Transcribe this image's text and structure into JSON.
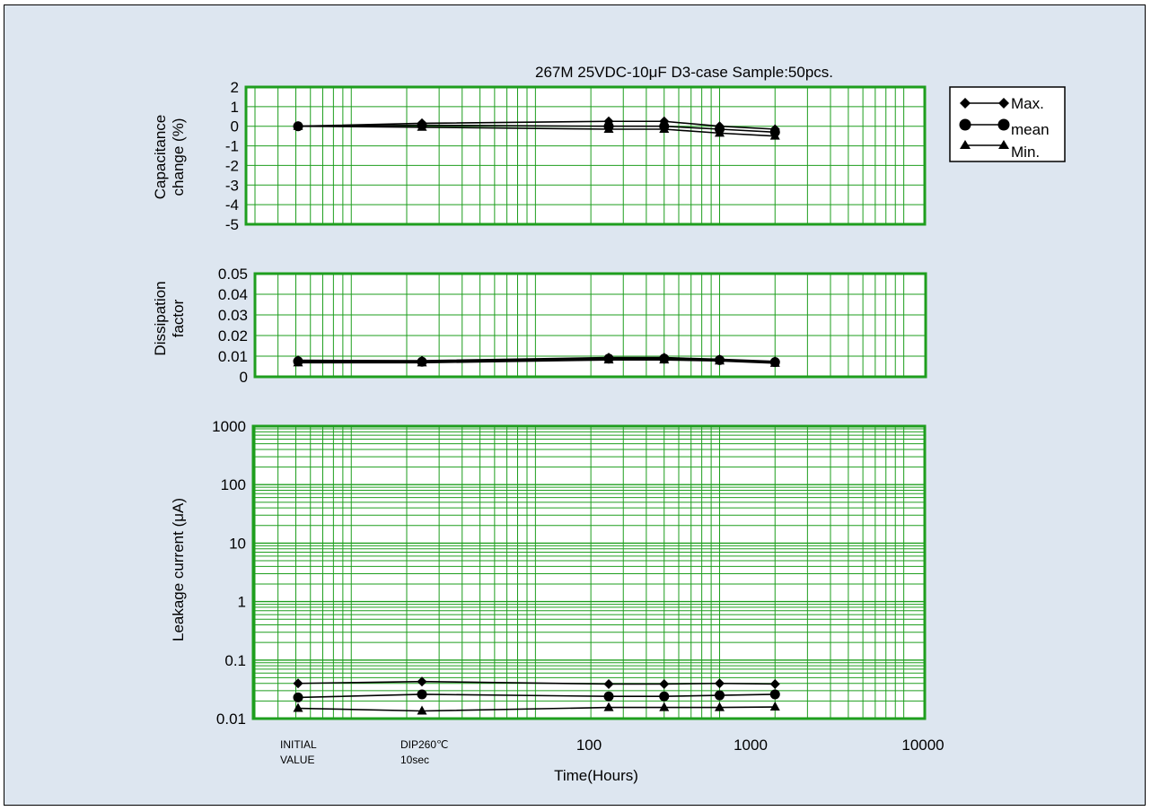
{
  "chart_data": {
    "title": "267M 25VDC-10μF D3-case Sample:50pcs.",
    "xlabel": "Time(Hours)",
    "x_positions": [
      "INITIAL VALUE",
      "DIP260℃ 10sec",
      250,
      500,
      1000,
      2000
    ],
    "x_tick_labels": {
      "initial_line1": "INITIAL",
      "initial_line2": "VALUE",
      "dip_line1": "DIP260℃",
      "dip_line2": "10sec",
      "t100": "100",
      "t1000": "1000",
      "t10000": "10000"
    },
    "legend": {
      "max": "Max.",
      "mean": "mean",
      "min": "Min."
    },
    "grid_color": "#1e9e1e",
    "panels": [
      {
        "type": "line",
        "ylabel_line1": "Capacitance",
        "ylabel_line2": "change  (%)",
        "ylim": [
          -5,
          2
        ],
        "yticks": [
          "2",
          "1",
          "0",
          "-1",
          "-2",
          "-3",
          "-4",
          "-5"
        ],
        "series": [
          {
            "name": "Max.",
            "marker": "diamond",
            "values": [
              0,
              0.15,
              0.25,
              0.25,
              0.0,
              -0.15
            ]
          },
          {
            "name": "mean",
            "marker": "circle",
            "values": [
              0,
              0.05,
              0.0,
              0.0,
              -0.15,
              -0.3
            ]
          },
          {
            "name": "Min.",
            "marker": "triangle",
            "values": [
              0,
              -0.05,
              -0.15,
              -0.15,
              -0.35,
              -0.5
            ]
          }
        ]
      },
      {
        "type": "line",
        "ylabel_line1": "Dissipation",
        "ylabel_line2": "factor",
        "ylim": [
          0,
          0.05
        ],
        "yticks": [
          "0.05",
          "0.04",
          "0.03",
          "0.02",
          "0.01",
          "0"
        ],
        "series": [
          {
            "name": "Max.",
            "marker": "diamond",
            "values": [
              0.008,
              0.0078,
              0.0093,
              0.0093,
              0.0085,
              0.0075
            ]
          },
          {
            "name": "mean",
            "marker": "circle",
            "values": [
              0.0075,
              0.0073,
              0.0088,
              0.0088,
              0.0081,
              0.0071
            ]
          },
          {
            "name": "Min.",
            "marker": "triangle",
            "values": [
              0.0068,
              0.0068,
              0.0082,
              0.0082,
              0.0077,
              0.0066
            ]
          }
        ]
      },
      {
        "type": "line",
        "yscale": "log",
        "ylabel_line1": "Leakage  current (μA)",
        "ylim": [
          0.01,
          1000
        ],
        "yticks": [
          "1000",
          "100",
          "10",
          "1",
          "0.1",
          "0.01"
        ],
        "series": [
          {
            "name": "Max.",
            "marker": "diamond",
            "values": [
              0.04,
              0.043,
              0.039,
              0.039,
              0.04,
              0.039
            ]
          },
          {
            "name": "mean",
            "marker": "circle",
            "values": [
              0.023,
              0.026,
              0.024,
              0.024,
              0.025,
              0.026
            ]
          },
          {
            "name": "Min.",
            "marker": "triangle",
            "values": [
              0.015,
              0.0135,
              0.0155,
              0.0155,
              0.0155,
              0.0158
            ]
          }
        ]
      }
    ]
  }
}
